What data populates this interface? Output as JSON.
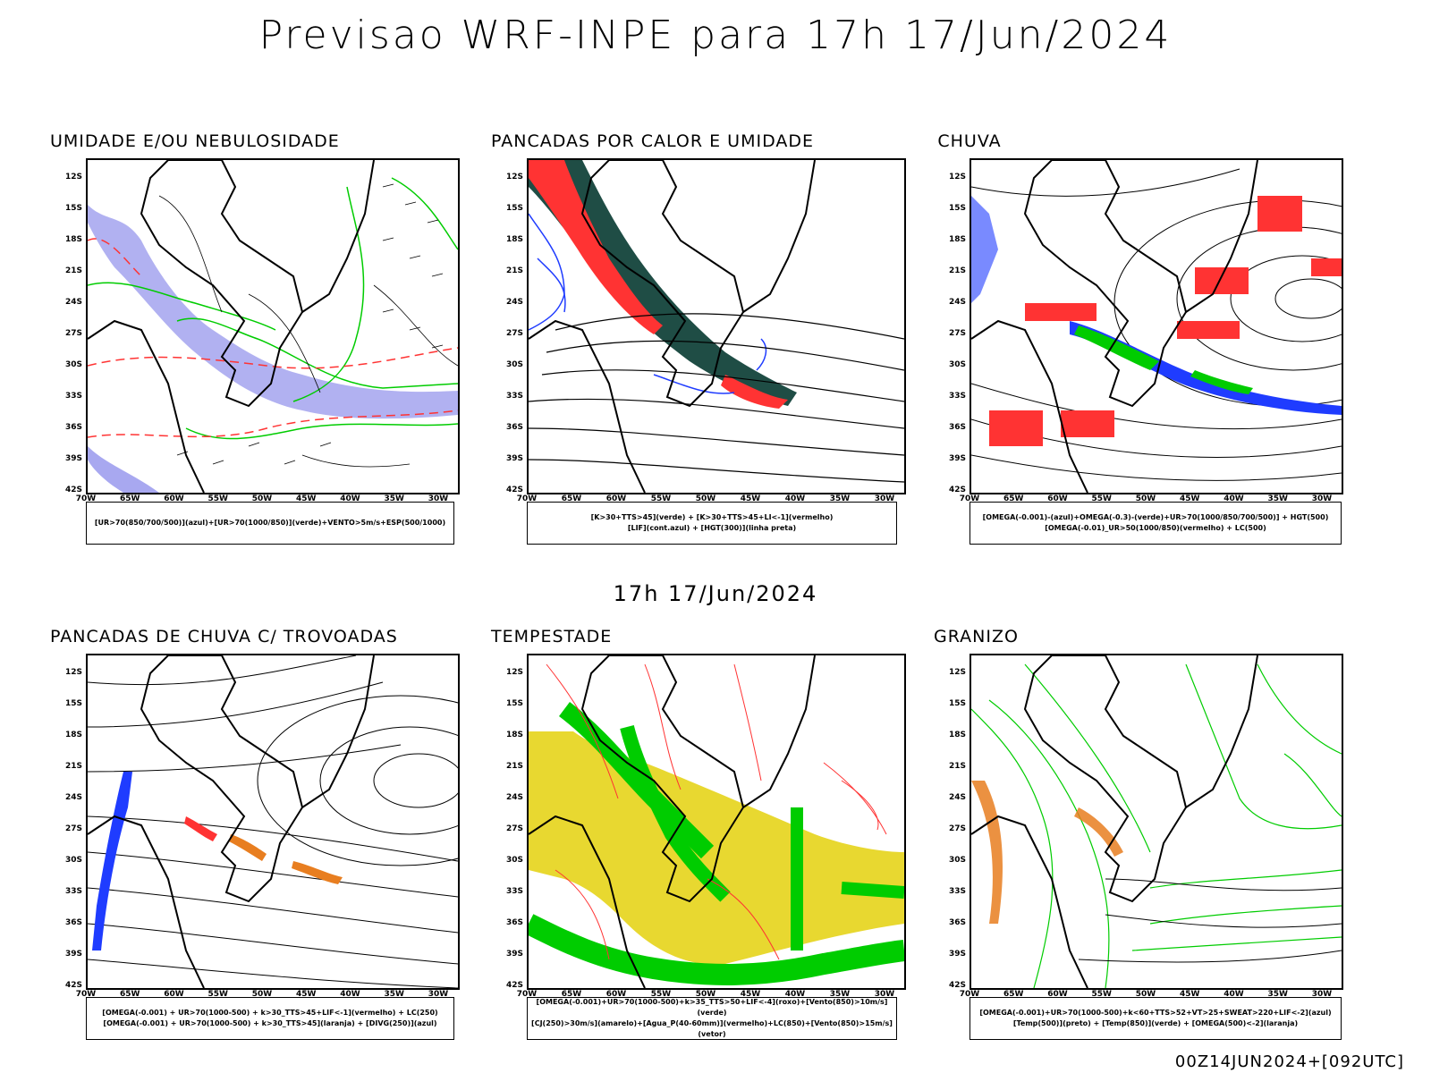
{
  "title": "Previsao WRF-INPE  para 17h 17/Jun/2024",
  "mid_title": "17h 17/Jun/2024",
  "footer": "00Z14JUN2024+[092UTC]",
  "lat_ticks": [
    "12S",
    "15S",
    "18S",
    "21S",
    "24S",
    "27S",
    "30S",
    "33S",
    "36S",
    "39S",
    "42S"
  ],
  "lon_ticks": [
    "70W",
    "65W",
    "60W",
    "55W",
    "50W",
    "45W",
    "40W",
    "35W",
    "30W"
  ],
  "colors": {
    "blue": "#1f3cff",
    "lavender": "#a8a8f0",
    "green": "#00cc00",
    "red": "#ff3333",
    "darkgreen": "#1f4d45",
    "yellow": "#e8d830",
    "orange": "#e87e20"
  },
  "panels": [
    {
      "title": "UMIDADE E/OU NEBULOSIDADE",
      "legend": [
        "[UR>70(850/700/500)](azul)+[UR>70(1000/850)](verde)+VENTO>5m/s+ESP(500/1000)"
      ]
    },
    {
      "title": "PANCADAS POR CALOR E UMIDADE",
      "legend": [
        "[K>30+TTS>45](verde) + [K>30+TTS>45+LI<-1](vermelho)",
        "[LIF](cont.azul) + [HGT(300)](linha preta)"
      ]
    },
    {
      "title": "CHUVA",
      "legend": [
        "[OMEGA(-0.001)-(azul)+OMEGA(-0.3)-(verde)+UR>70(1000/850/700/500)] + HGT(500)",
        "[OMEGA(-0.01)_UR>50(1000/850)(vermelho) + LC(500)"
      ]
    },
    {
      "title": "PANCADAS DE CHUVA C/ TROVOADAS",
      "legend": [
        "[OMEGA(-0.001) + UR>70(1000-500) + k>30_TTS>45+LIF<-1](vermelho) + LC(250)",
        "[OMEGA(-0.001) + UR>70(1000-500) + k>30_TTS>45](laranja) + [DIVG(250)](azul)"
      ]
    },
    {
      "title": "TEMPESTADE",
      "legend": [
        "[OMEGA(-0.001)+UR>70(1000-500)+k>35_TTS>50+LIF<-4](roxo)+[Vento(850)>10m/s](verde)",
        "[CJ(250)>30m/s](amarelo)+[Agua_P(40-60mm)](vermelho)+LC(850)+[Vento(850)>15m/s](vetor)"
      ]
    },
    {
      "title": "GRANIZO",
      "legend": [
        "[OMEGA(-0.001)+UR>70(1000-500)+k<60+TTS>52+VT>25+SWEAT>220+LIF<-2](azul)",
        "[Temp(500)](preto) + [Temp(850)](verde) + [OMEGA(500)<-2](laranja)"
      ]
    }
  ]
}
